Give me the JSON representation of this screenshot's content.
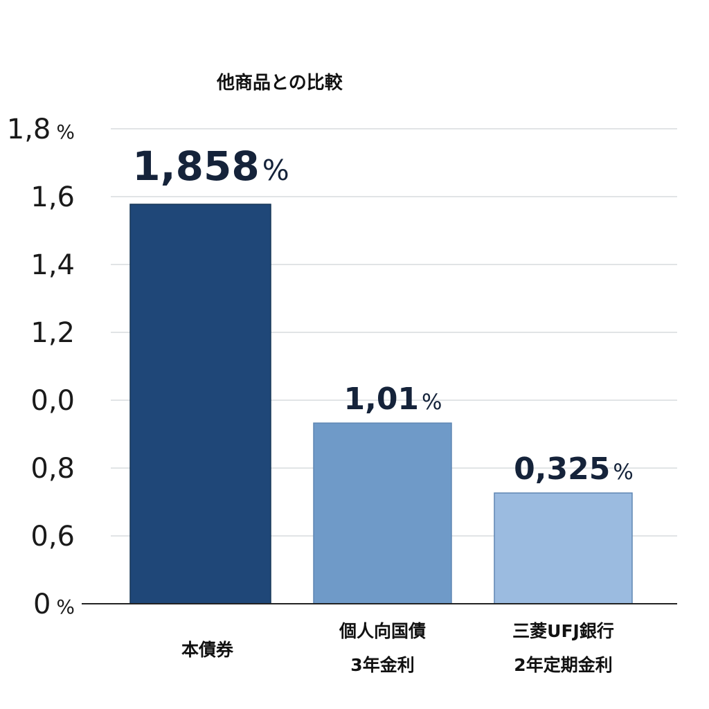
{
  "chart_data": {
    "type": "bar",
    "title": "他商品との比較",
    "categories": [
      [
        "本債券"
      ],
      [
        "個人向国債",
        "3年金利"
      ],
      [
        "三菱UFJ銀行",
        "2年定期金利"
      ]
    ],
    "values": [
      1.858,
      1.01,
      0.325
    ],
    "data_labels": [
      {
        "number": "1,858",
        "unit": "%"
      },
      {
        "number": "1,01",
        "unit": "%"
      },
      {
        "number": "0,325",
        "unit": "%"
      }
    ],
    "bar_colors": [
      "#1f4778",
      "#6f9ac8",
      "#9bbbe0"
    ],
    "y_ticks": [
      {
        "label": "0",
        "unit": "%"
      },
      {
        "label": "0,6",
        "unit": ""
      },
      {
        "label": "0,8",
        "unit": ""
      },
      {
        "label": "0,0",
        "unit": ""
      },
      {
        "label": "1,2",
        "unit": ""
      },
      {
        "label": "1,4",
        "unit": ""
      },
      {
        "label": "1,6",
        "unit": ""
      },
      {
        "label": "1,8",
        "unit": "%"
      }
    ],
    "grid": true,
    "legend": "none"
  }
}
